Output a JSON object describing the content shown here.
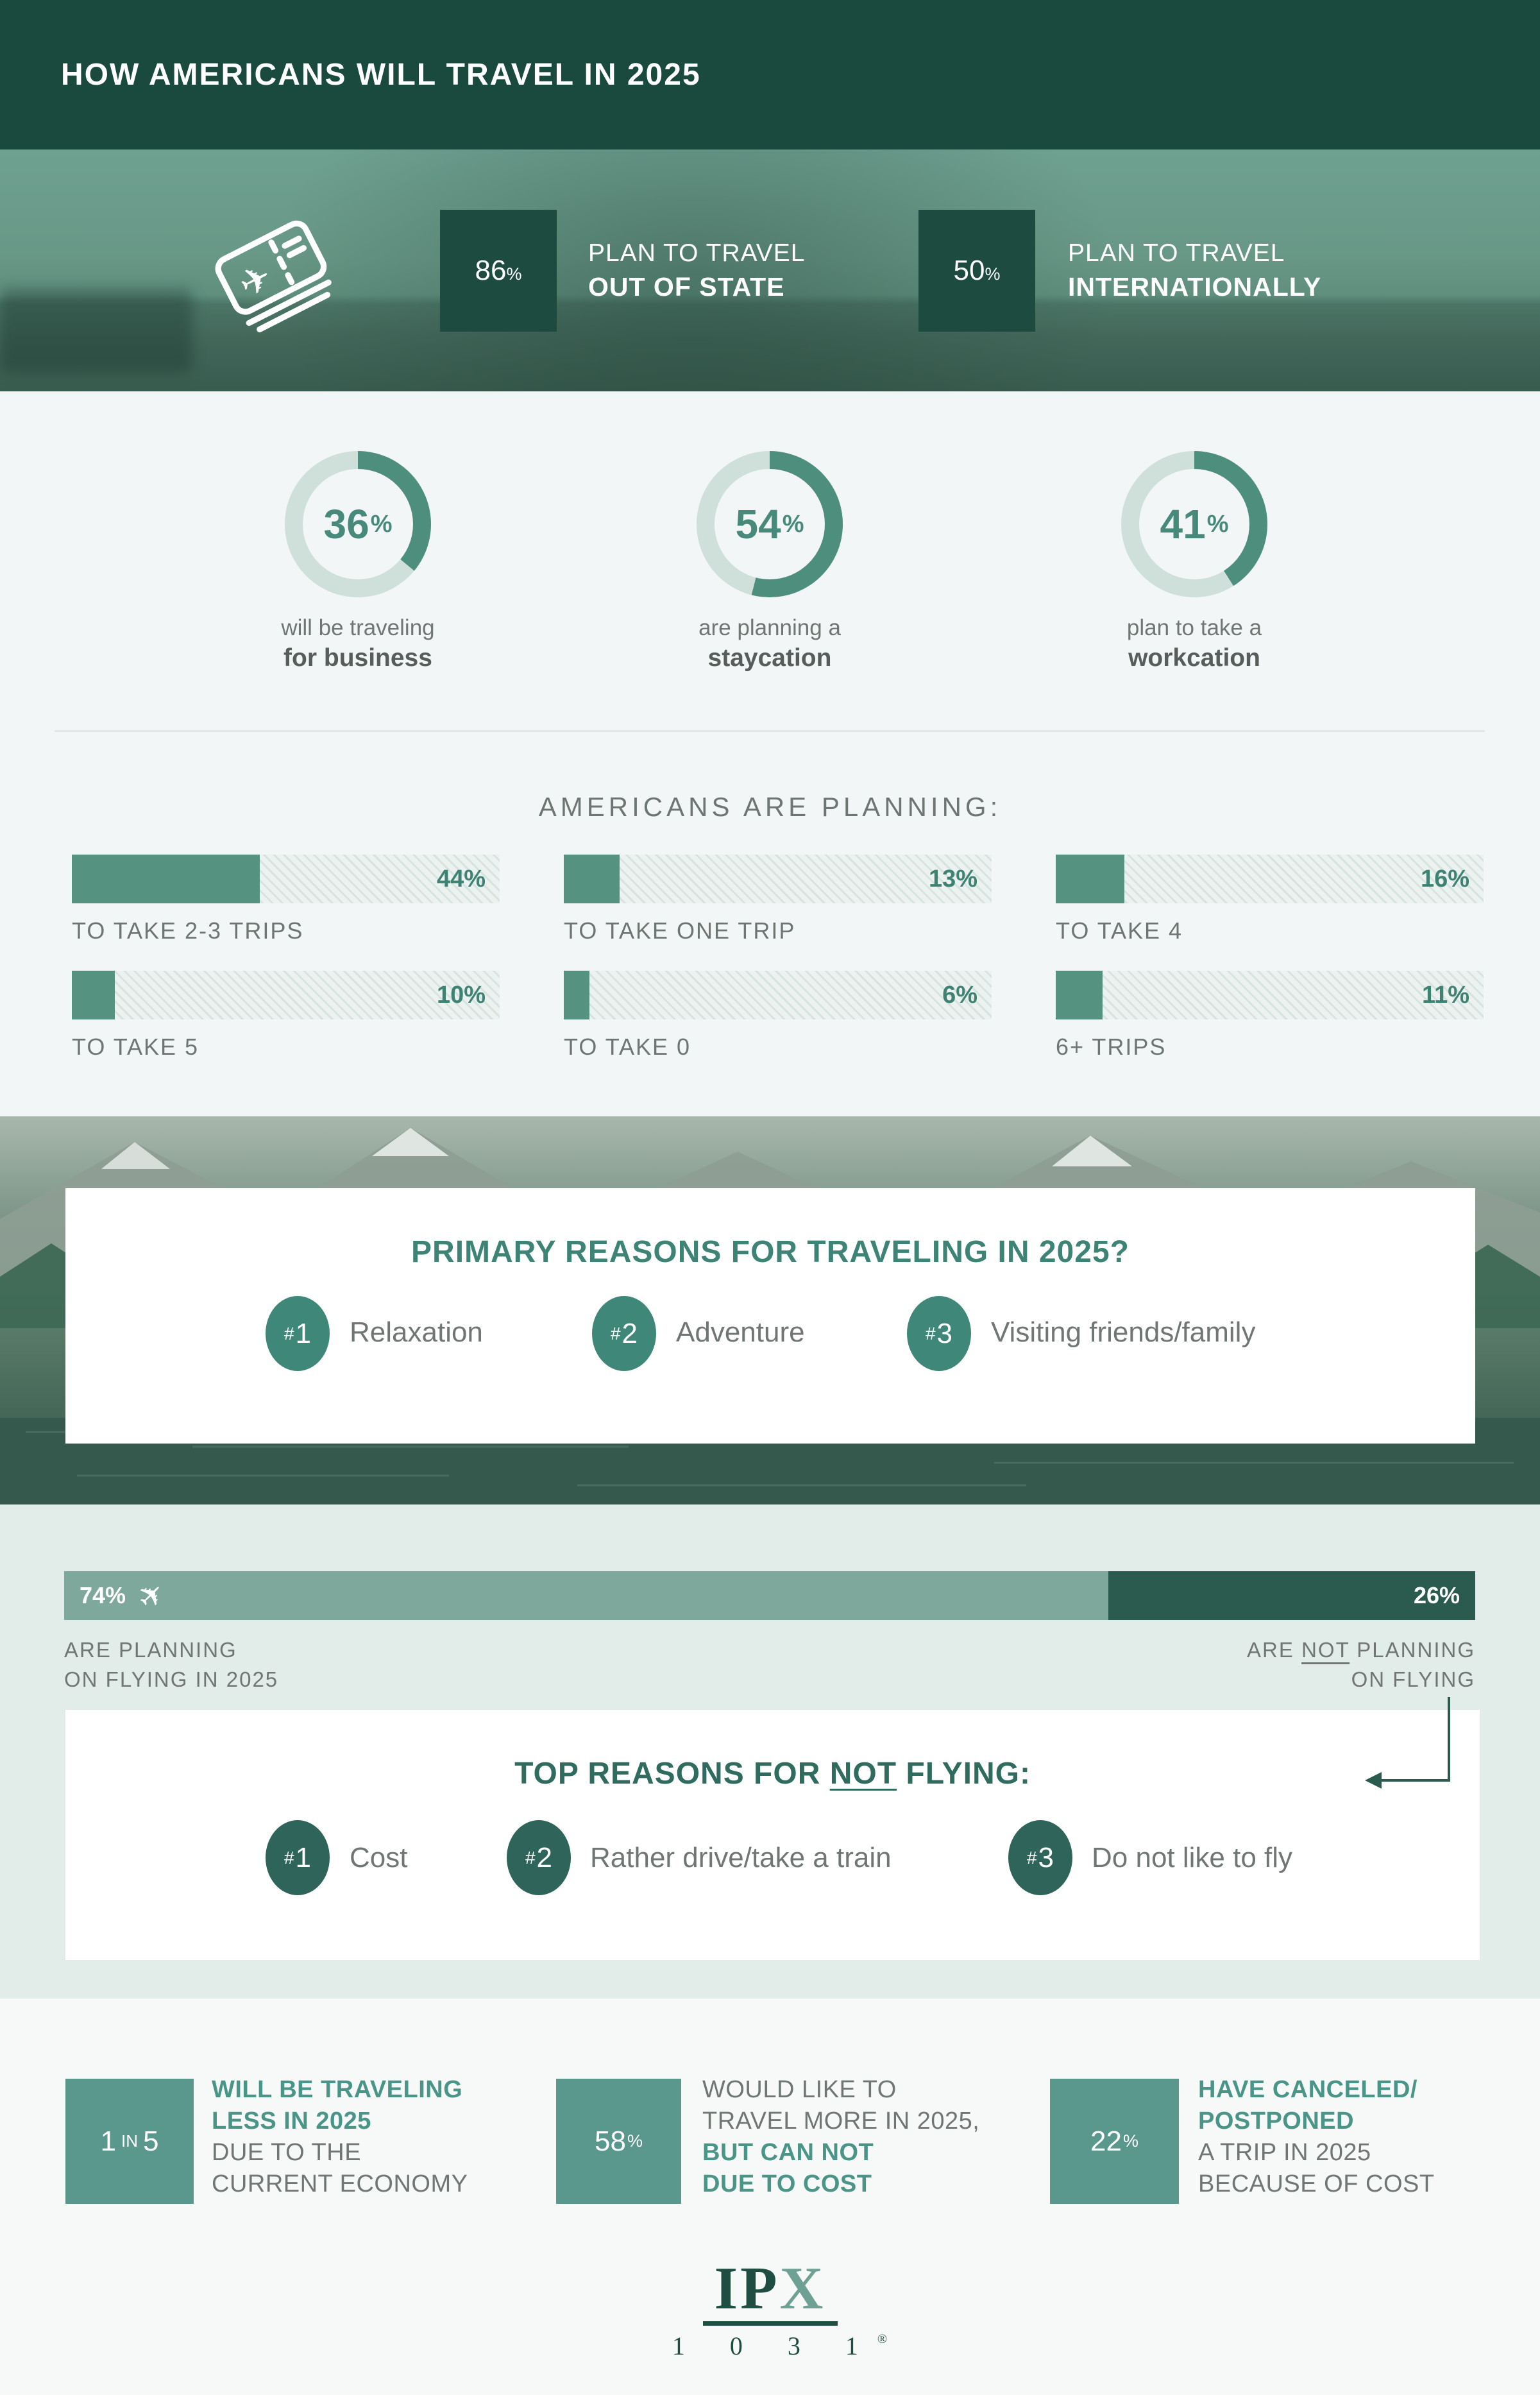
{
  "colors": {
    "header_bg": "#1A493D",
    "dark_box": "#1D4B40",
    "donut_fill": "#4E8E7D",
    "donut_track": "#CFE0DA",
    "bar_fill": "#55927F",
    "teal_text": "#3E8273",
    "gray_text": "#6F7673",
    "fly_yes": "#7EA89B",
    "fly_no": "#2B5B4F",
    "badge_teal": "#3F8779",
    "badge_dark": "#2E6459",
    "stat_box": "#5A978C",
    "stat_teal": "#4A9488",
    "logo_green": "#1F4D42"
  },
  "header": {
    "title": "HOW AMERICANS WILL TRAVEL IN 2025"
  },
  "hero": {
    "stats": [
      {
        "value": "86",
        "unit": "%",
        "line1": "PLAN TO TRAVEL",
        "line2": "OUT OF STATE"
      },
      {
        "value": "50",
        "unit": "%",
        "line1": "PLAN TO TRAVEL",
        "line2": "INTERNATIONALLY"
      }
    ]
  },
  "donuts": {
    "items": [
      {
        "pct": 36,
        "value": "36",
        "unit": "%",
        "line1": "will be traveling",
        "line2": "for business"
      },
      {
        "pct": 54,
        "value": "54",
        "unit": "%",
        "line1": "are planning a",
        "line2": "staycation"
      },
      {
        "pct": 41,
        "value": "41",
        "unit": "%",
        "line1": "plan to take a",
        "line2": "workcation"
      }
    ]
  },
  "planning": {
    "title": "AMERICANS ARE PLANNING:",
    "bars": [
      {
        "pct": 44,
        "label": "44%",
        "caption": "TO TAKE 2-3 TRIPS"
      },
      {
        "pct": 13,
        "label": "13%",
        "caption": "TO TAKE ONE TRIP"
      },
      {
        "pct": 16,
        "label": "16%",
        "caption": "TO TAKE 4"
      },
      {
        "pct": 10,
        "label": "10%",
        "caption": "TO TAKE 5"
      },
      {
        "pct": 6,
        "label": "6%",
        "caption": "TO TAKE 0"
      },
      {
        "pct": 11,
        "label": "11%",
        "caption": "6+ TRIPS"
      }
    ]
  },
  "primary_reasons": {
    "title": "PRIMARY REASONS FOR TRAVELING IN 2025?",
    "items": [
      {
        "rank_hash": "#",
        "rank_num": "1",
        "label": "Relaxation"
      },
      {
        "rank_hash": "#",
        "rank_num": "2",
        "label": "Adventure"
      },
      {
        "rank_hash": "#",
        "rank_num": "3",
        "label": "Visiting friends/family"
      }
    ]
  },
  "flying": {
    "yes_pct": "74%",
    "no_pct": "26%",
    "yes_line1": "ARE PLANNING",
    "yes_line2": "ON FLYING IN 2025",
    "no_line1_pre": "ARE ",
    "no_line1_not": "NOT",
    "no_line1_post": " PLANNING",
    "no_line2": "ON FLYING"
  },
  "not_flying": {
    "title_pre": "TOP REASONS FOR ",
    "title_not": "NOT",
    "title_post": " FLYING:",
    "items": [
      {
        "rank_hash": "#",
        "rank_num": "1",
        "label": "Cost"
      },
      {
        "rank_hash": "#",
        "rank_num": "2",
        "label": "Rather drive/take a train"
      },
      {
        "rank_hash": "#",
        "rank_num": "3",
        "label": "Do not like to fly"
      }
    ]
  },
  "bottom_stats": [
    {
      "value_a": "1",
      "value_small": "IN",
      "value_b": "5",
      "lines": [
        {
          "text": "WILL BE TRAVELING"
        },
        {
          "text": "LESS IN 2025"
        },
        {
          "text": "DUE TO THE"
        },
        {
          "text": "CURRENT ECONOMY"
        }
      ]
    },
    {
      "value": "58",
      "unit": "%",
      "lines": [
        {
          "text": "WOULD LIKE TO"
        },
        {
          "text": "TRAVEL MORE IN 2025,"
        },
        {
          "text": "BUT CAN NOT"
        },
        {
          "text": "DUE TO COST"
        }
      ]
    },
    {
      "value": "22",
      "unit": "%",
      "lines": [
        {
          "text": "HAVE CANCELED/"
        },
        {
          "text": "POSTPONED"
        },
        {
          "text": "A TRIP IN 2025"
        },
        {
          "text": "BECAUSE OF COST"
        }
      ]
    }
  ],
  "logo": {
    "ip": "IP",
    "x": "X",
    "digits": "1 0 3 1",
    "reg": "®"
  },
  "chart_data": [
    {
      "type": "pie",
      "title": "How Americans will travel in 2025 — standalone percentage callouts",
      "series": [
        {
          "label": "plan to travel out of state",
          "value": 86
        },
        {
          "label": "plan to travel internationally",
          "value": 50
        },
        {
          "label": "will be traveling for business",
          "value": 36
        },
        {
          "label": "are planning a staycation",
          "value": 54
        },
        {
          "label": "plan to take a workcation",
          "value": 41
        }
      ],
      "unit": "%",
      "note": "each value is an independent donut/box gauge out of 100"
    },
    {
      "type": "bar",
      "title": "AMERICANS ARE PLANNING:",
      "categories": [
        "TO TAKE 2-3 TRIPS",
        "TO TAKE ONE TRIP",
        "TO TAKE 4",
        "TO TAKE 5",
        "TO TAKE 0",
        "6+ TRIPS"
      ],
      "values": [
        44,
        13,
        16,
        10,
        6,
        11
      ],
      "unit": "%",
      "xlim": [
        0,
        100
      ],
      "legend": "none",
      "grid": false
    },
    {
      "type": "bar",
      "title": "Flying in 2025 (stacked 100%)",
      "categories": [
        "ARE PLANNING ON FLYING IN 2025",
        "ARE NOT PLANNING ON FLYING"
      ],
      "values": [
        74,
        26
      ],
      "unit": "%",
      "stacked": true
    },
    {
      "type": "table",
      "title": "Economy / cost impacts",
      "rows": [
        [
          "1 IN 5",
          "WILL BE TRAVELING LESS IN 2025 DUE TO THE CURRENT ECONOMY"
        ],
        [
          "58%",
          "WOULD LIKE TO TRAVEL MORE IN 2025, BUT CAN NOT DUE TO COST"
        ],
        [
          "22%",
          "HAVE CANCELED/POSTPONED A TRIP IN 2025 BECAUSE OF COST"
        ]
      ]
    }
  ]
}
